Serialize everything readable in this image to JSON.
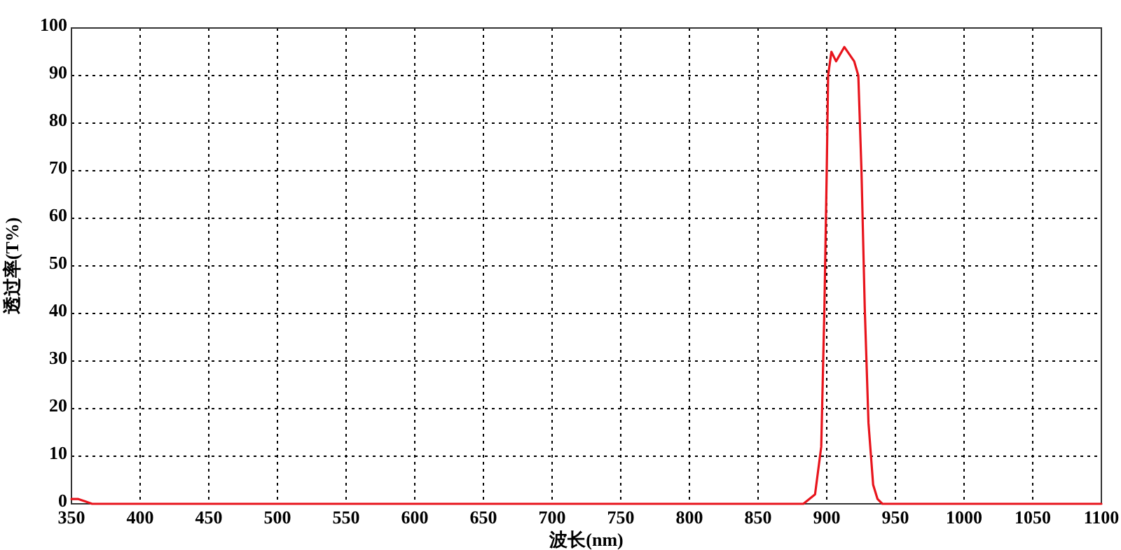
{
  "chart_data": {
    "type": "line",
    "xlabel": "波长(nm)",
    "ylabel": "透过率(T%)",
    "x": [
      350,
      355,
      360,
      365,
      380,
      500,
      700,
      880,
      883,
      891.5,
      896,
      898.3,
      900,
      901,
      903.4,
      906.8,
      912.8,
      920,
      923,
      925.3,
      927.7,
      930.4,
      933.8,
      937,
      940.5,
      950,
      1100
    ],
    "series": [
      {
        "color": "#e8141c",
        "values": [
          1,
          1,
          0.5,
          0,
          0,
          0,
          0,
          0,
          0,
          2,
          12,
          41,
          70,
          90,
          95,
          93,
          96,
          93,
          90,
          70,
          41,
          17,
          4,
          1,
          0,
          0,
          0
        ]
      }
    ],
    "xlim": [
      350,
      1100
    ],
    "ylim": [
      0,
      100
    ],
    "xticks": [
      350,
      400,
      450,
      500,
      550,
      600,
      650,
      700,
      750,
      800,
      850,
      900,
      950,
      1000,
      1050,
      1100
    ],
    "yticks": [
      0,
      10,
      20,
      30,
      40,
      50,
      60,
      70,
      80,
      90,
      100
    ],
    "grid": true,
    "marker": "none",
    "line_style": "solid"
  }
}
